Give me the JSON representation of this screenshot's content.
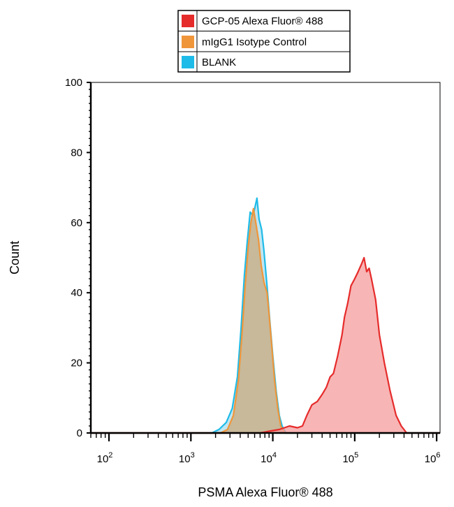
{
  "chart_data": {
    "type": "area",
    "title": "",
    "xlabel": "PSMA Alexa Fluor® 488",
    "ylabel": "Count",
    "xscale": "log",
    "xlim": [
      60,
      1100000
    ],
    "ylim": [
      0,
      100
    ],
    "yticks": [
      0,
      20,
      40,
      60,
      80,
      100
    ],
    "xticks": [
      {
        "base": "10",
        "exp": "2",
        "value": 100
      },
      {
        "base": "10",
        "exp": "3",
        "value": 1000
      },
      {
        "base": "10",
        "exp": "4",
        "value": 10000
      },
      {
        "base": "10",
        "exp": "5",
        "value": 100000
      },
      {
        "base": "10",
        "exp": "6",
        "value": 1000000
      }
    ],
    "grid": false,
    "legend_position": "top-center",
    "series": [
      {
        "name": "BLANK",
        "color": "#1fbbe8",
        "fill": "#a9dded",
        "points": [
          [
            60,
            0
          ],
          [
            1800,
            0
          ],
          [
            2200,
            1
          ],
          [
            2700,
            3
          ],
          [
            3200,
            7
          ],
          [
            3700,
            16
          ],
          [
            4100,
            30
          ],
          [
            4500,
            45
          ],
          [
            4900,
            55
          ],
          [
            5300,
            63
          ],
          [
            5700,
            62
          ],
          [
            6000,
            64
          ],
          [
            6400,
            67
          ],
          [
            6800,
            61
          ],
          [
            7300,
            58
          ],
          [
            7800,
            52
          ],
          [
            8500,
            42
          ],
          [
            9200,
            32
          ],
          [
            10000,
            22
          ],
          [
            11000,
            12
          ],
          [
            12000,
            5
          ],
          [
            13000,
            2
          ],
          [
            14500,
            0
          ],
          [
            1100000,
            0
          ]
        ]
      },
      {
        "name": "mIgG1 Isotype Control",
        "color": "#f0963a",
        "fill": "#c9a97c",
        "points": [
          [
            60,
            0
          ],
          [
            2300,
            0
          ],
          [
            2800,
            1
          ],
          [
            3300,
            5
          ],
          [
            3800,
            15
          ],
          [
            4200,
            28
          ],
          [
            4600,
            42
          ],
          [
            5000,
            53
          ],
          [
            5400,
            60
          ],
          [
            5800,
            64
          ],
          [
            6200,
            60
          ],
          [
            6700,
            55
          ],
          [
            7200,
            48
          ],
          [
            7800,
            43
          ],
          [
            8500,
            40
          ],
          [
            9000,
            34
          ],
          [
            9700,
            25
          ],
          [
            10500,
            15
          ],
          [
            11500,
            7
          ],
          [
            12500,
            2
          ],
          [
            14000,
            0
          ],
          [
            1100000,
            0
          ]
        ]
      },
      {
        "name": "GCP-05 Alexa Fluor® 488",
        "color": "#e62b2b",
        "fill": "#f59c9c",
        "points": [
          [
            60,
            0
          ],
          [
            7000,
            0
          ],
          [
            9000,
            0.5
          ],
          [
            12000,
            1
          ],
          [
            16000,
            2
          ],
          [
            20000,
            1.5
          ],
          [
            23000,
            2
          ],
          [
            26000,
            5
          ],
          [
            30000,
            8
          ],
          [
            35000,
            9
          ],
          [
            40000,
            11
          ],
          [
            45000,
            13
          ],
          [
            50000,
            16
          ],
          [
            55000,
            17
          ],
          [
            62000,
            22
          ],
          [
            70000,
            28
          ],
          [
            75000,
            33
          ],
          [
            82000,
            37
          ],
          [
            90000,
            42
          ],
          [
            100000,
            44
          ],
          [
            110000,
            46
          ],
          [
            120000,
            48
          ],
          [
            130000,
            50
          ],
          [
            140000,
            46
          ],
          [
            150000,
            47
          ],
          [
            160000,
            44
          ],
          [
            180000,
            38
          ],
          [
            200000,
            28
          ],
          [
            230000,
            20
          ],
          [
            270000,
            12
          ],
          [
            320000,
            5
          ],
          [
            370000,
            2
          ],
          [
            430000,
            0
          ],
          [
            1100000,
            0
          ]
        ]
      }
    ]
  }
}
